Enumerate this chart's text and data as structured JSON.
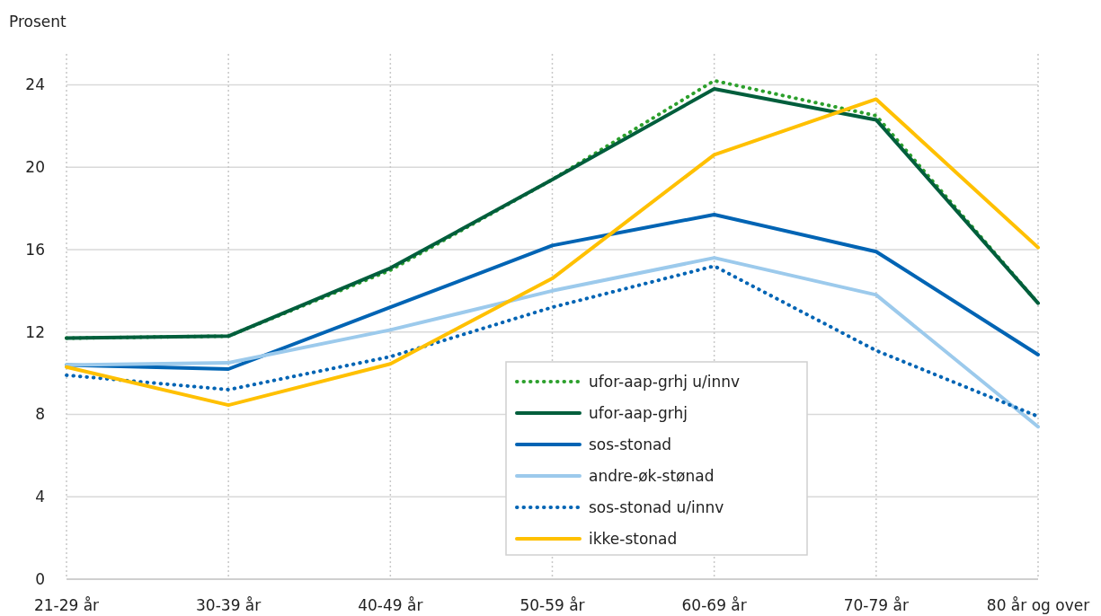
{
  "chart_data": {
    "type": "line",
    "ylabel": "Prosent",
    "categories": [
      "21-29 år",
      "30-39 år",
      "40-49 år",
      "50-59 år",
      "60-69 år",
      "70-79 år",
      "80 år og over"
    ],
    "ylim": [
      0,
      25.5
    ],
    "yticks": [
      0,
      4,
      8,
      12,
      16,
      20,
      24
    ],
    "grid": true,
    "legend": "bottom",
    "marker": "none",
    "series": [
      {
        "name": "ufor-aap-grhj u/innv",
        "color": "#2ca02c",
        "line_style": "dotted",
        "values": [
          11.7,
          11.8,
          15.0,
          19.4,
          24.2,
          22.5,
          13.4
        ]
      },
      {
        "name": "ufor-aap-grhj",
        "color": "#005e3c",
        "line_style": "solid",
        "values": [
          11.7,
          11.8,
          15.1,
          19.4,
          23.8,
          22.3,
          13.4
        ]
      },
      {
        "name": "sos-stonad",
        "color": "#0064b4",
        "line_style": "solid",
        "values": [
          10.4,
          10.2,
          13.2,
          16.2,
          17.7,
          15.9,
          10.9
        ]
      },
      {
        "name": "andre-øk-stønad",
        "color": "#9ccaec",
        "line_style": "solid",
        "values": [
          10.4,
          10.5,
          12.1,
          14.0,
          15.6,
          13.8,
          7.4
        ]
      },
      {
        "name": "sos-stonad u/innv",
        "color": "#0064b4",
        "line_style": "dotted",
        "values": [
          9.9,
          9.2,
          10.8,
          13.2,
          15.2,
          11.1,
          7.9
        ]
      },
      {
        "name": "ikke-stonad",
        "color": "#ffc000",
        "line_style": "solid",
        "values": [
          10.3,
          8.45,
          10.45,
          14.6,
          20.6,
          23.3,
          16.1
        ]
      }
    ]
  }
}
